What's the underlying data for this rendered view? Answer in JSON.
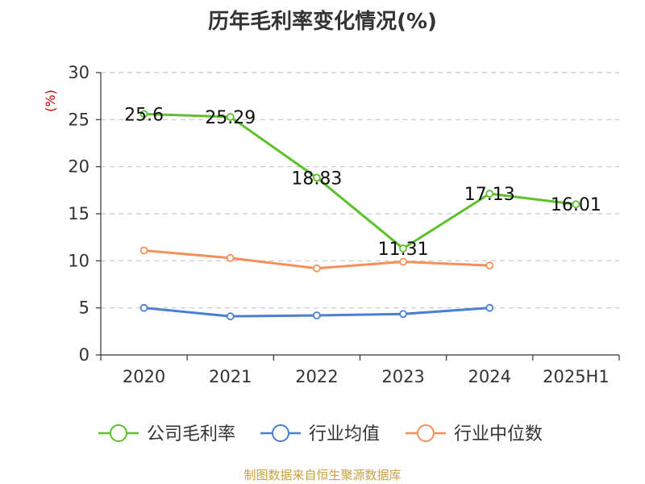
{
  "chart_data": {
    "type": "line",
    "title": "历年毛利率变化情况(%)",
    "ylabel": "(%)",
    "xlabel": "",
    "categories": [
      "2020",
      "2021",
      "2022",
      "2023",
      "2024",
      "2025H1"
    ],
    "ylim": [
      0,
      30
    ],
    "yticks": [
      0,
      5,
      10,
      15,
      20,
      25,
      30
    ],
    "grid": true,
    "legend_position": "bottom",
    "series": [
      {
        "name": "公司毛利率",
        "color": "#5cc12b",
        "values": [
          25.6,
          25.29,
          18.83,
          11.31,
          17.13,
          16.01
        ],
        "labels": [
          "25.6",
          "25.29",
          "18.83",
          "11.31",
          "17.13",
          "16.01"
        ]
      },
      {
        "name": "行业均值",
        "color": "#4a7fd6",
        "values": [
          5.0,
          4.1,
          4.2,
          4.35,
          5.0,
          null
        ]
      },
      {
        "name": "行业中位数",
        "color": "#f5905a",
        "values": [
          11.1,
          10.3,
          9.2,
          9.9,
          9.5,
          null
        ]
      }
    ]
  },
  "source": "制图数据来自恒生聚源数据库"
}
